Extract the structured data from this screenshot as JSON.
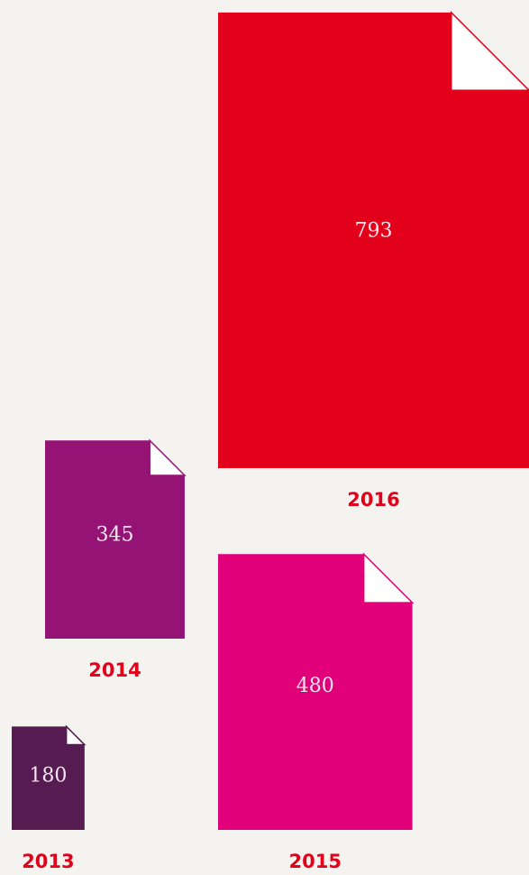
{
  "chart_data": {
    "type": "icon",
    "categories": [
      "2013",
      "2014",
      "2015",
      "2016"
    ],
    "values": [
      180,
      345,
      480,
      793
    ],
    "colors": [
      "#561c52",
      "#951375",
      "#e2007a",
      "#e2001a"
    ],
    "label_color": "#e2001a"
  }
}
